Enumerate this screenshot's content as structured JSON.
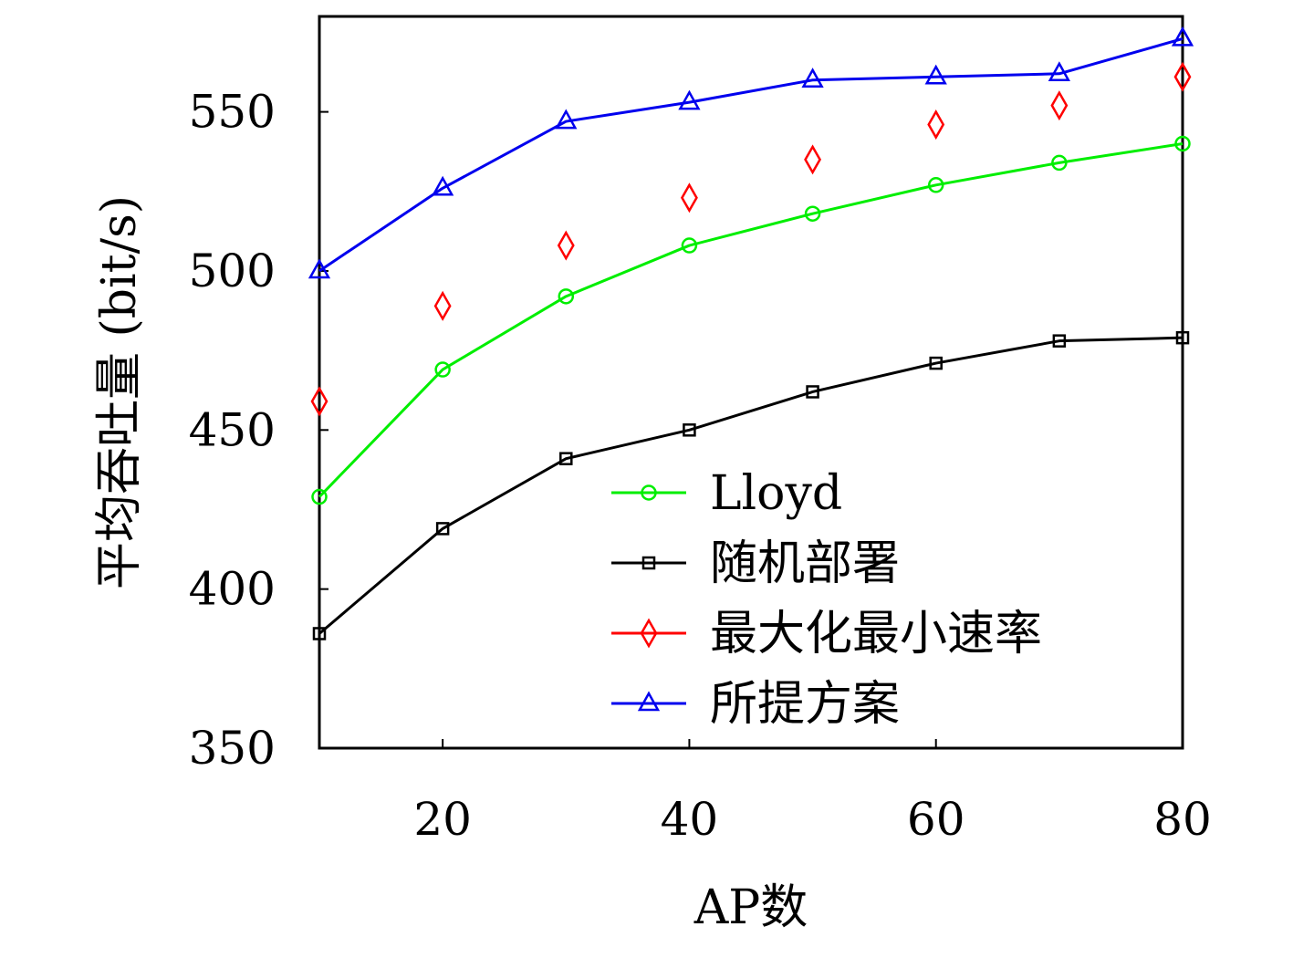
{
  "chart_data": {
    "type": "line",
    "xlabel": "AP数",
    "ylabel": "平均吞吐量 (bit/s)",
    "xlim": [
      10,
      80
    ],
    "ylim": [
      350,
      580
    ],
    "xticks": [
      20,
      40,
      60,
      80
    ],
    "yticks": [
      350,
      400,
      450,
      500,
      550
    ],
    "grid": false,
    "legend_position": "bottom-right",
    "x": [
      10,
      20,
      30,
      40,
      50,
      60,
      70,
      80
    ],
    "series": [
      {
        "name": "Lloyd",
        "color": "#00ee00",
        "marker": "circle",
        "line": true,
        "values": [
          429,
          469,
          492,
          508,
          518,
          527,
          534,
          540
        ]
      },
      {
        "name": "随机部署",
        "color": "#000000",
        "marker": "square",
        "line": true,
        "values": [
          386,
          419,
          441,
          450,
          462,
          471,
          478,
          479
        ]
      },
      {
        "name": "最大化最小速率",
        "color": "#ff0000",
        "marker": "diamond",
        "line": false,
        "values": [
          459,
          489,
          508,
          523,
          535,
          546,
          552,
          561
        ]
      },
      {
        "name": "所提方案",
        "color": "#0000ee",
        "marker": "triangle",
        "line": true,
        "values": [
          500,
          526,
          547,
          553,
          560,
          561,
          562,
          573
        ]
      }
    ]
  }
}
